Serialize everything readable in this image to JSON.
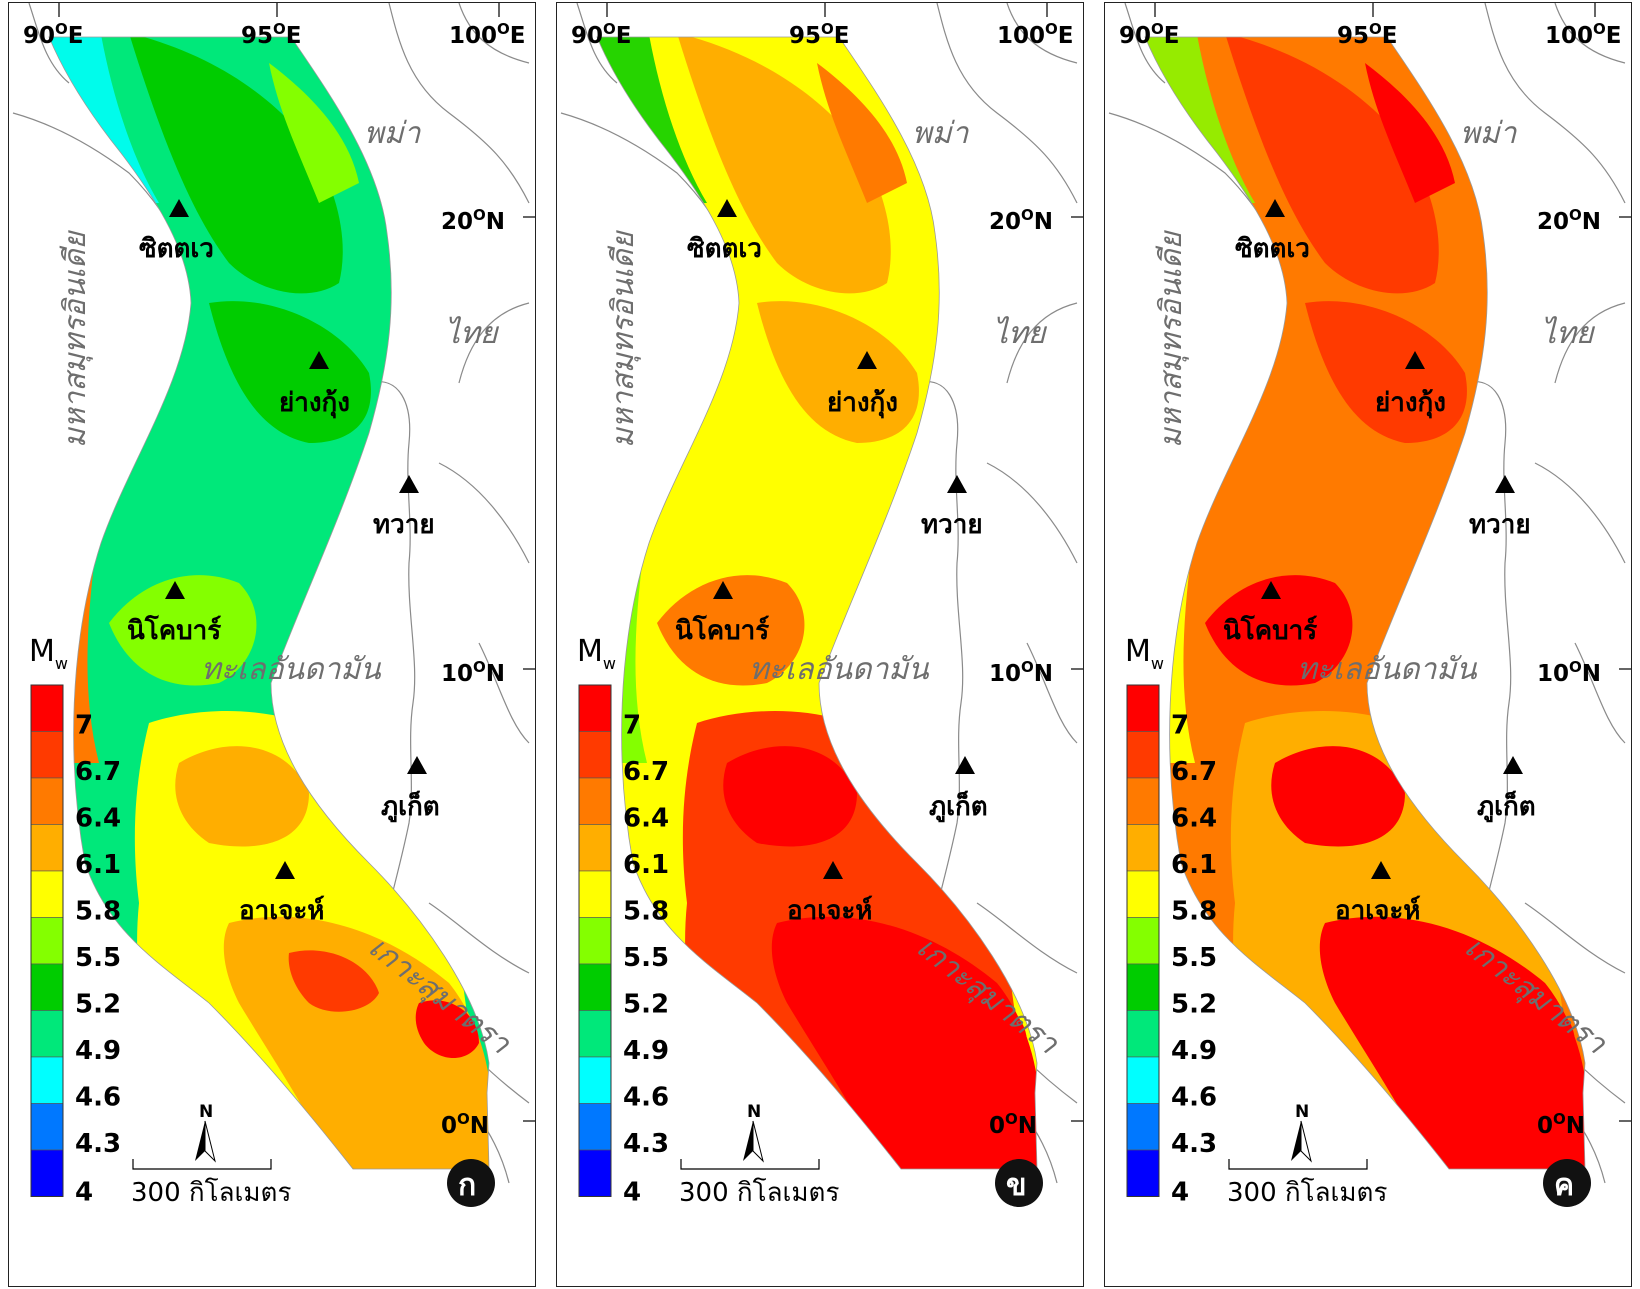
{
  "panels": [
    {
      "id": "a",
      "tag": "ก",
      "mode": "low"
    },
    {
      "id": "b",
      "tag": "ข",
      "mode": "mid"
    },
    {
      "id": "c",
      "tag": "ค",
      "mode": "high"
    }
  ],
  "coords": {
    "lon_90": "90",
    "lon_95": "95",
    "lon_100": "100",
    "lon_90_unit": "E",
    "lon_95_unit": "E",
    "lon_100_unit": "E",
    "lat_20": "20",
    "lat_10": "10",
    "lat_0": "0",
    "lat_unit": "N",
    "deg": "O"
  },
  "cities": {
    "sittwe": "ซิตตเว",
    "yangon": "ย่างกุ้ง",
    "dawei": "ทวาย",
    "nicobar": "นิโคบาร์",
    "phuket": "ภูเก็ต",
    "aceh": "อาเจะห์"
  },
  "regions": {
    "myanmar": "พม่า",
    "thailand": "ไทย",
    "indian_ocean": "มหาสมุทรอินเดีย",
    "andaman": "ทะเลอันดามัน",
    "sumatra": "เกาะสุมาตรา"
  },
  "legend": {
    "title": "M",
    "title_sub": "w",
    "ticks": [
      "7",
      "6.7",
      "6.4",
      "6.1",
      "5.8",
      "5.5",
      "5.2",
      "4.9",
      "4.6",
      "4.3",
      "4"
    ],
    "colors": [
      "#ff0000",
      "#ff3a00",
      "#ff7a00",
      "#ffae00",
      "#ffff00",
      "#84ff00",
      "#00cc00",
      "#00e87a",
      "#00ffff",
      "#0078ff",
      "#0000ff"
    ]
  },
  "scalebar": {
    "label": "300 กิโลเมตร",
    "north": "N"
  }
}
